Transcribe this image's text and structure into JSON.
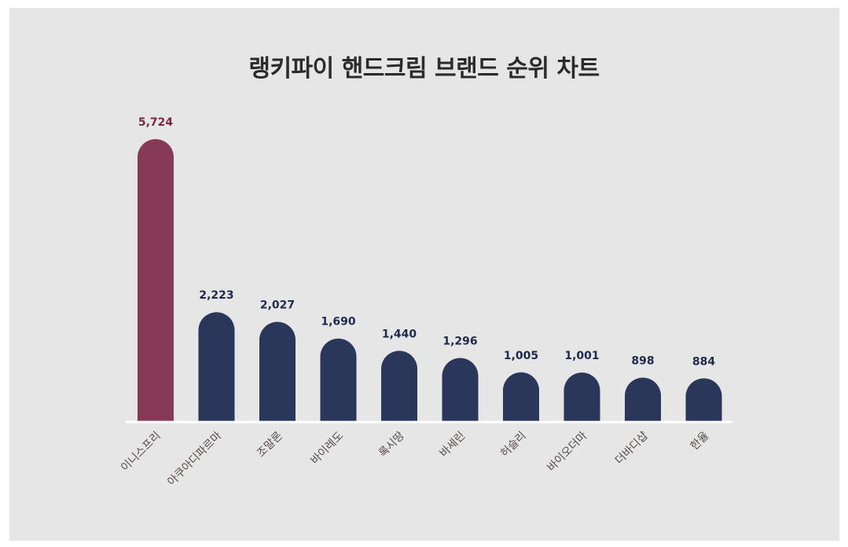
{
  "colors": {
    "background": "#e6e6e6",
    "highlight_bar": "#873a55",
    "bar": "#2b365b",
    "highlight_value_text": "#7a2843",
    "value_text": "#1f2a4d",
    "baseline": "#ffffff"
  },
  "chart_data": {
    "type": "bar",
    "title": "랭키파이 핸드크림 브랜드 순위 차트",
    "xlabel": "",
    "ylabel": "",
    "categories": [
      "이니스프리",
      "아쿠아디파르마",
      "조말론",
      "바이레도",
      "록시땅",
      "바세린",
      "허슬리",
      "바이오더마",
      "더바디샵",
      "한율"
    ],
    "values": [
      5724,
      2223,
      2027,
      1690,
      1440,
      1296,
      1005,
      1001,
      898,
      884
    ],
    "value_labels": [
      "5,724",
      "2,223",
      "2,027",
      "1,690",
      "1,440",
      "1,296",
      "1,005",
      "1,001",
      "898",
      "884"
    ],
    "highlight_index": 0,
    "ylim": [
      0,
      5724
    ],
    "grid": false,
    "legend": "none"
  }
}
